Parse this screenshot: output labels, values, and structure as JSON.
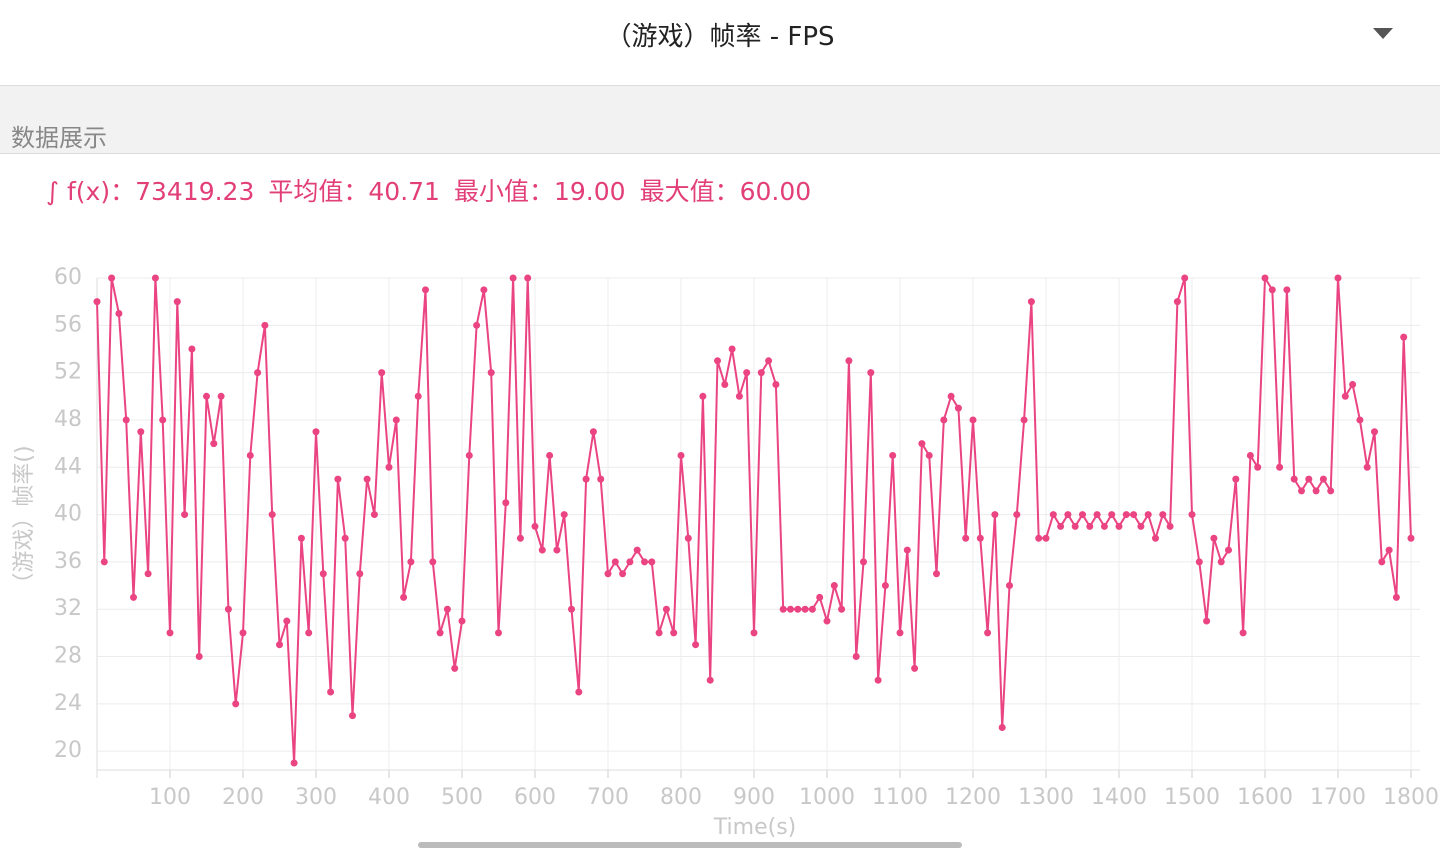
{
  "header": {
    "title": "（游戏）帧率 - FPS"
  },
  "section": {
    "title": "数据展示"
  },
  "stats": [
    {
      "label": "∫ f(x)：",
      "value": "73419.23"
    },
    {
      "label": "平均值：",
      "value": "40.71"
    },
    {
      "label": "最小值：",
      "value": "19.00"
    },
    {
      "label": "最大值：",
      "value": "60.00"
    }
  ],
  "chart_data": {
    "type": "line",
    "x_label": "Time(s)",
    "y_label": "（游戏）帧率()",
    "x": [
      0,
      10,
      20,
      30,
      40,
      50,
      60,
      70,
      80,
      90,
      100,
      110,
      120,
      130,
      140,
      150,
      160,
      170,
      180,
      190,
      200,
      210,
      220,
      230,
      240,
      250,
      260,
      270,
      280,
      290,
      300,
      310,
      320,
      330,
      340,
      350,
      360,
      370,
      380,
      390,
      400,
      410,
      420,
      430,
      440,
      450,
      460,
      470,
      480,
      490,
      500,
      510,
      520,
      530,
      540,
      550,
      560,
      570,
      580,
      590,
      600,
      610,
      620,
      630,
      640,
      650,
      660,
      670,
      680,
      690,
      700,
      710,
      720,
      730,
      740,
      750,
      760,
      770,
      780,
      790,
      800,
      810,
      820,
      830,
      840,
      850,
      860,
      870,
      880,
      890,
      900,
      910,
      920,
      930,
      940,
      950,
      960,
      970,
      980,
      990,
      1000,
      1010,
      1020,
      1030,
      1040,
      1050,
      1060,
      1070,
      1080,
      1090,
      1100,
      1110,
      1120,
      1130,
      1140,
      1150,
      1160,
      1170,
      1180,
      1190,
      1200,
      1210,
      1220,
      1230,
      1240,
      1250,
      1260,
      1270,
      1280,
      1290,
      1300,
      1310,
      1320,
      1330,
      1340,
      1350,
      1360,
      1370,
      1380,
      1390,
      1400,
      1410,
      1420,
      1430,
      1440,
      1450,
      1460,
      1470,
      1480,
      1490,
      1500,
      1510,
      1520,
      1530,
      1540,
      1550,
      1560,
      1570,
      1580,
      1590,
      1600,
      1610,
      1620,
      1630,
      1640,
      1650,
      1660,
      1670,
      1680,
      1690,
      1700,
      1710,
      1720,
      1730,
      1740,
      1750,
      1760,
      1770,
      1780,
      1790,
      1800
    ],
    "series": [
      {
        "color": "#ea4482",
        "values": [
          58,
          36,
          60,
          57,
          48,
          33,
          47,
          35,
          60,
          48,
          30,
          58,
          40,
          54,
          28,
          50,
          46,
          50,
          32,
          24,
          30,
          45,
          52,
          56,
          40,
          29,
          31,
          19,
          38,
          30,
          47,
          35,
          25,
          43,
          38,
          23,
          35,
          43,
          40,
          52,
          44,
          48,
          33,
          36,
          50,
          59,
          36,
          30,
          32,
          27,
          31,
          45,
          56,
          59,
          52,
          30,
          41,
          60,
          38,
          60,
          39,
          37,
          45,
          37,
          40,
          32,
          25,
          43,
          47,
          43,
          35,
          36,
          35,
          36,
          37,
          36,
          36,
          30,
          32,
          30,
          45,
          38,
          29,
          50,
          26,
          53,
          51,
          54,
          50,
          52,
          30,
          52,
          53,
          51,
          32,
          32,
          32,
          32,
          32,
          33,
          31,
          34,
          32,
          53,
          28,
          36,
          52,
          26,
          34,
          45,
          30,
          37,
          27,
          46,
          45,
          35,
          48,
          50,
          49,
          38,
          48,
          38,
          30,
          40,
          22,
          34,
          40,
          48,
          58,
          38,
          38,
          40,
          39,
          40,
          39,
          40,
          39,
          40,
          39,
          40,
          39,
          40,
          40,
          39,
          40,
          38,
          40,
          39,
          58,
          60,
          40,
          36,
          31,
          38,
          36,
          37,
          43,
          30,
          45,
          44,
          60,
          59,
          44,
          59,
          43,
          42,
          43,
          42,
          43,
          42,
          60,
          50,
          51,
          48,
          44,
          47,
          36,
          37,
          33,
          55,
          38
        ]
      }
    ],
    "xlim": [
      0,
      1800
    ],
    "ylim": [
      19,
      60
    ],
    "xticks": [
      100,
      200,
      300,
      400,
      500,
      600,
      700,
      800,
      900,
      1000,
      1100,
      1200,
      1300,
      1400,
      1500,
      1600,
      1700,
      1800
    ],
    "yticks": [
      20,
      24,
      28,
      32,
      36,
      40,
      44,
      48,
      52,
      56,
      60
    ],
    "grid": true
  }
}
